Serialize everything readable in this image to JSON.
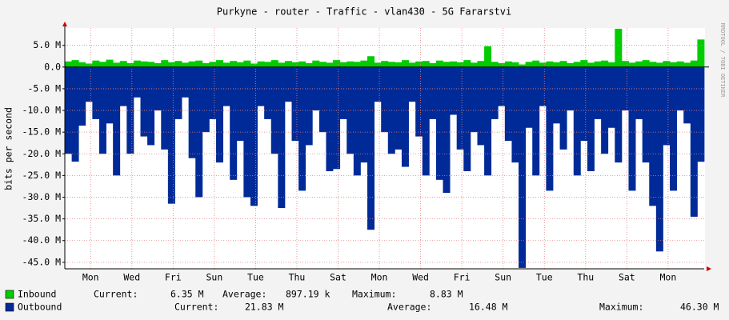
{
  "chart_data": {
    "type": "area",
    "title": "Purkyne - router  - Traffic - vlan430 - 5G Fararstvi",
    "y_label": "bits per second",
    "watermark": "RRDTOOL / TOBI OETIKER",
    "xlim": [
      0,
      744
    ],
    "xticks": [
      {
        "value": 30,
        "label": "Mon"
      },
      {
        "value": 78,
        "label": "Wed"
      },
      {
        "value": 126,
        "label": "Fri"
      },
      {
        "value": 174,
        "label": "Sun"
      },
      {
        "value": 222,
        "label": "Tue"
      },
      {
        "value": 270,
        "label": "Thu"
      },
      {
        "value": 318,
        "label": "Sat"
      },
      {
        "value": 366,
        "label": "Mon"
      },
      {
        "value": 414,
        "label": "Wed"
      },
      {
        "value": 462,
        "label": "Fri"
      },
      {
        "value": 510,
        "label": "Sun"
      },
      {
        "value": 558,
        "label": "Tue"
      },
      {
        "value": 606,
        "label": "Thu"
      },
      {
        "value": 654,
        "label": "Sat"
      },
      {
        "value": 702,
        "label": "Mon"
      }
    ],
    "ylim": [
      -46.5,
      9
    ],
    "yticks": [
      {
        "value": 5,
        "label": "5.0 M"
      },
      {
        "value": 0,
        "label": "0.0"
      },
      {
        "value": -5,
        "label": "-5.0 M"
      },
      {
        "value": -10,
        "label": "-10.0 M"
      },
      {
        "value": -15,
        "label": "-15.0 M"
      },
      {
        "value": -20,
        "label": "-20.0 M"
      },
      {
        "value": -25,
        "label": "-25.0 M"
      },
      {
        "value": -30,
        "label": "-30.0 M"
      },
      {
        "value": -35,
        "label": "-35.0 M"
      },
      {
        "value": -40,
        "label": "-40.0 M"
      },
      {
        "value": -45,
        "label": "-45.0 M"
      }
    ],
    "grid": true,
    "x": [
      0,
      8,
      16,
      24,
      32,
      40,
      48,
      56,
      64,
      72,
      80,
      88,
      96,
      104,
      112,
      120,
      128,
      136,
      144,
      152,
      160,
      168,
      176,
      184,
      192,
      200,
      208,
      216,
      224,
      232,
      240,
      248,
      256,
      264,
      272,
      280,
      288,
      296,
      304,
      312,
      320,
      328,
      336,
      344,
      352,
      360,
      368,
      376,
      384,
      392,
      400,
      408,
      416,
      424,
      432,
      440,
      448,
      456,
      464,
      472,
      480,
      488,
      496,
      504,
      512,
      520,
      528,
      536,
      544,
      552,
      560,
      568,
      576,
      584,
      592,
      600,
      608,
      616,
      624,
      632,
      640,
      648,
      656,
      664,
      672,
      680,
      688,
      696,
      704,
      712,
      720,
      728,
      736
    ],
    "series": [
      {
        "name": "Inbound",
        "color": "#00cc00",
        "values": [
          1.3,
          1.6,
          1.1,
          0.8,
          1.5,
          1.2,
          1.7,
          1.0,
          1.4,
          0.9,
          1.5,
          1.3,
          1.2,
          0.9,
          1.6,
          1.1,
          1.4,
          1.0,
          1.3,
          1.5,
          0.9,
          1.2,
          1.6,
          1.0,
          1.4,
          1.1,
          1.5,
          0.8,
          1.3,
          1.2,
          1.6,
          1.0,
          1.4,
          1.1,
          1.3,
          0.9,
          1.5,
          1.2,
          1.0,
          1.6,
          1.1,
          1.3,
          1.2,
          1.5,
          2.5,
          1.0,
          1.4,
          1.2,
          1.1,
          1.6,
          1.0,
          1.3,
          1.4,
          0.9,
          1.5,
          1.2,
          1.3,
          1.1,
          1.6,
          1.0,
          1.4,
          4.8,
          1.2,
          0.9,
          1.3,
          1.1,
          0.6,
          1.2,
          1.5,
          1.0,
          1.3,
          1.1,
          1.4,
          0.9,
          1.2,
          1.6,
          1.0,
          1.3,
          1.5,
          1.1,
          8.83,
          1.4,
          1.0,
          1.3,
          1.6,
          1.2,
          1.0,
          1.4,
          1.1,
          1.3,
          1.0,
          1.5,
          6.35
        ],
        "stats": [
          {
            "label": "Current:",
            "value": "6.35 M"
          },
          {
            "label": "Average:",
            "value": "897.19 k"
          },
          {
            "label": "Maximum:",
            "value": "8.83 M"
          }
        ]
      },
      {
        "name": "Outbound",
        "color": "#002a97",
        "values": [
          -20,
          -21.8,
          -13.5,
          -8,
          -12,
          -20,
          -13,
          -25,
          -9,
          -20,
          -7,
          -16,
          -18,
          -10,
          -19,
          -31.5,
          -12,
          -7,
          -21,
          -30,
          -15,
          -12,
          -22,
          -9,
          -26,
          -17,
          -30,
          -32,
          -9,
          -12,
          -20,
          -32.5,
          -8,
          -17,
          -28.5,
          -18,
          -10,
          -15,
          -24,
          -23.5,
          -12,
          -20,
          -25,
          -22,
          -37.5,
          -8,
          -15,
          -20,
          -19,
          -23,
          -8,
          -16,
          -25,
          -12,
          -26,
          -29,
          -11,
          -19,
          -24,
          -15,
          -18,
          -25,
          -12,
          -9,
          -17,
          -22,
          -46.3,
          -14,
          -25,
          -9,
          -28.5,
          -13,
          -19,
          -10,
          -25,
          -17,
          -24,
          -12,
          -20,
          -14,
          -22,
          -10,
          -28.5,
          -12,
          -22,
          -32,
          -42.5,
          -18,
          -28.5,
          -10,
          -13,
          -34.5,
          -21.83
        ],
        "stats": [
          {
            "label": "Current:",
            "value": "21.83 M"
          },
          {
            "label": "Average:",
            "value": "16.48 M"
          },
          {
            "label": "Maximum:",
            "value": "46.30 M"
          }
        ]
      }
    ]
  }
}
